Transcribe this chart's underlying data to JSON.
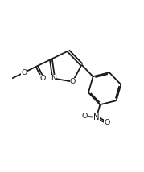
{
  "bg_color": "#ffffff",
  "line_color": "#1a1a1a",
  "line_width": 1.3,
  "font_size": 6.8,
  "fig_width": 1.79,
  "fig_height": 2.14,
  "dpi": 100,
  "xlim": [
    -0.5,
    10.5
  ],
  "ylim": [
    -0.5,
    12.0
  ]
}
